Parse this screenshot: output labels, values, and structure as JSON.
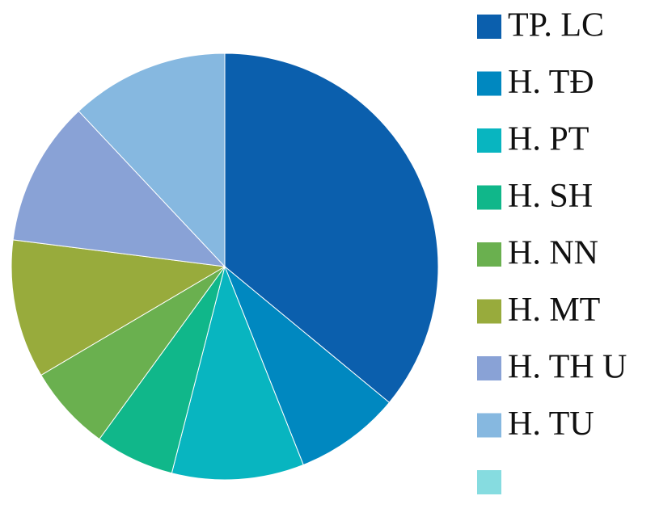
{
  "chart_data": {
    "type": "pie",
    "categories": [
      "TP. LC",
      "H. TĐ",
      "H. PT",
      "H. SH",
      "H. NN",
      "H. MT",
      "H. TH U",
      "H. TU",
      null
    ],
    "values": [
      36,
      8,
      10,
      6,
      6.5,
      10.5,
      11,
      12,
      0
    ],
    "colors": [
      "#0b5fad",
      "#0088c0",
      "#08b5c0",
      "#10b78a",
      "#6ab04f",
      "#98ab3c",
      "#89a2d6",
      "#86b8e0",
      "#86dce0"
    ],
    "legend": "right"
  }
}
